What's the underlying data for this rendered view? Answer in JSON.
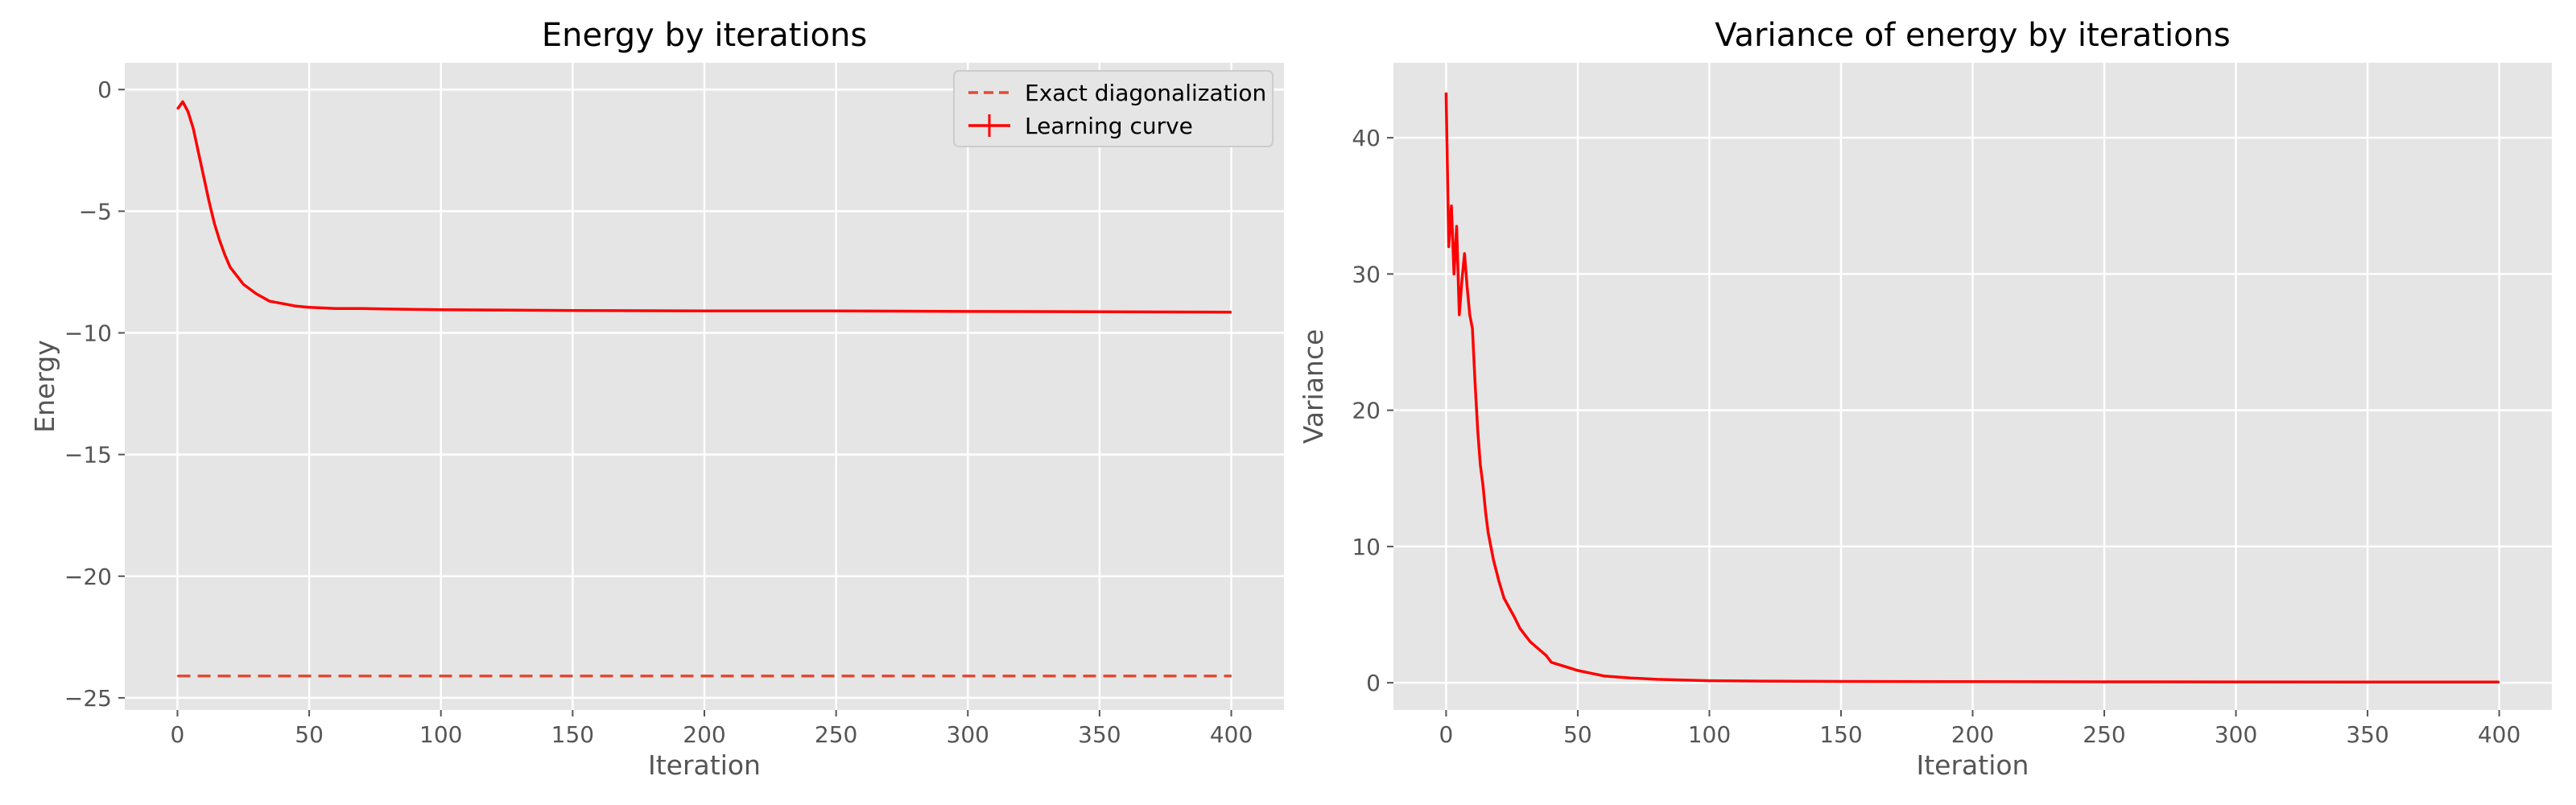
{
  "colors": {
    "series": "#ff0000",
    "exact": "#e24a33",
    "background": "#e5e5e5",
    "grid": "#ffffff",
    "text": "#555555"
  },
  "chart_data": [
    {
      "type": "line",
      "title": "Energy by iterations",
      "xlabel": "Iteration",
      "ylabel": "Energy",
      "xlim": [
        -20,
        420
      ],
      "ylim": [
        -25.5,
        1.1
      ],
      "xticks": [
        0,
        50,
        100,
        150,
        200,
        250,
        300,
        350,
        400
      ],
      "yticks": [
        0,
        -5,
        -10,
        -15,
        -20,
        -25
      ],
      "ytick_labels": [
        "0",
        "−5",
        "−10",
        "−15",
        "−20",
        "−25"
      ],
      "grid": true,
      "legend": "top-right",
      "series": [
        {
          "name": "Exact diagonalization",
          "style": "dashed",
          "x": [
            0,
            400
          ],
          "y": [
            -24.1,
            -24.1
          ]
        },
        {
          "name": "Learning curve",
          "style": "solid-errorbar",
          "x": [
            0,
            2,
            4,
            6,
            8,
            10,
            12,
            14,
            16,
            18,
            20,
            25,
            30,
            35,
            40,
            45,
            50,
            60,
            70,
            80,
            100,
            150,
            200,
            250,
            300,
            350,
            400
          ],
          "y": [
            -0.8,
            -0.5,
            -0.9,
            -1.6,
            -2.6,
            -3.6,
            -4.6,
            -5.5,
            -6.2,
            -6.8,
            -7.3,
            -8.0,
            -8.4,
            -8.7,
            -8.8,
            -8.9,
            -8.95,
            -9.0,
            -9.0,
            -9.02,
            -9.05,
            -9.08,
            -9.1,
            -9.1,
            -9.12,
            -9.13,
            -9.15
          ]
        }
      ]
    },
    {
      "type": "line",
      "title": "Variance of energy by iterations",
      "xlabel": "Iteration",
      "ylabel": "Variance",
      "xlim": [
        -20,
        420
      ],
      "ylim": [
        -2,
        45.5
      ],
      "xticks": [
        0,
        50,
        100,
        150,
        200,
        250,
        300,
        350,
        400
      ],
      "yticks": [
        0,
        10,
        20,
        30,
        40
      ],
      "ytick_labels": [
        "0",
        "10",
        "20",
        "30",
        "40"
      ],
      "grid": true,
      "series": [
        {
          "style": "solid",
          "x": [
            0,
            1,
            2,
            3,
            4,
            5,
            6,
            7,
            8,
            9,
            10,
            11,
            12,
            13,
            14,
            15,
            16,
            18,
            20,
            22,
            24,
            26,
            28,
            30,
            32,
            35,
            38,
            40,
            45,
            50,
            55,
            60,
            70,
            80,
            100,
            120,
            150,
            200,
            250,
            300,
            350,
            400
          ],
          "y": [
            43.3,
            32.0,
            35.0,
            30.0,
            33.5,
            27.0,
            29.5,
            31.5,
            29.0,
            27.0,
            26.0,
            22.0,
            18.5,
            16.0,
            14.5,
            12.5,
            11.0,
            9.0,
            7.5,
            6.2,
            5.5,
            4.8,
            4.0,
            3.5,
            3.0,
            2.5,
            2.0,
            1.5,
            1.2,
            0.9,
            0.7,
            0.5,
            0.35,
            0.25,
            0.15,
            0.12,
            0.1,
            0.08,
            0.07,
            0.06,
            0.05,
            0.05
          ]
        }
      ]
    }
  ]
}
